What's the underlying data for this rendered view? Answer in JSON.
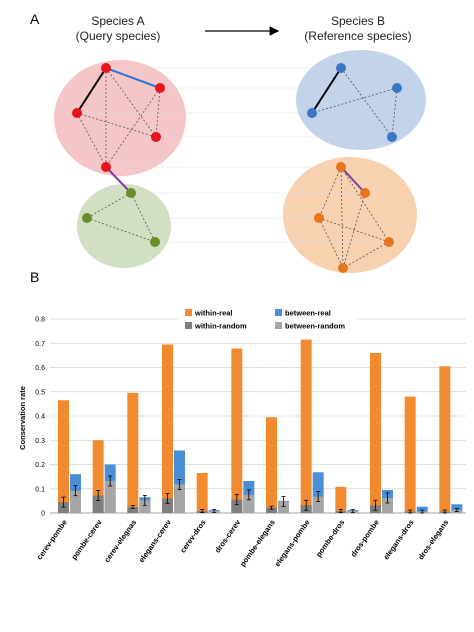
{
  "panel_a": {
    "label": "A",
    "species_a_line1": "Species A",
    "species_a_line2": "(Query species)",
    "species_b_line1": "Species B",
    "species_b_line2": "(Reference species)",
    "colors": {
      "red_cluster": "#f5c6c8",
      "green_cluster": "#d3dfc2",
      "blue_cluster": "#c3d3ea",
      "orange_cluster": "#f7d1b0",
      "red_node": "#e8131b",
      "green_node": "#6a8c2c",
      "blue_node": "#3a76c4",
      "orange_node": "#e8741c",
      "blue_edge": "#2e74c9",
      "purple_edge": "#7a3fa0"
    }
  },
  "panel_b": {
    "label": "B"
  },
  "chart_data": {
    "type": "bar",
    "ylabel": "Conservation rate",
    "ylim": [
      0,
      0.8
    ],
    "yticks": [
      "0",
      "0.1",
      "0.2",
      "0.3",
      "0.4",
      "0.5",
      "0.6",
      "0.7",
      "0.8"
    ],
    "grid": true,
    "legend_position": "top",
    "categories": [
      "cerev-pombe",
      "pombe-cerev",
      "cerev-elegnas",
      "elegans-cerev",
      "cerev-dros",
      "dros-cerev",
      "pombe-elegans",
      "elegans-pombe",
      "pombe-dros",
      "dros-pombe",
      "elegans-dros",
      "dros-elegans"
    ],
    "series": [
      {
        "name": "within-real",
        "color": "#f28a30",
        "values": [
          0.465,
          0.3,
          0.495,
          0.695,
          0.165,
          0.678,
          0.395,
          0.715,
          0.108,
          0.66,
          0.48,
          0.605
        ]
      },
      {
        "name": "within-random",
        "color": "#7f7f7f",
        "values": [
          0.045,
          0.072,
          0.025,
          0.06,
          0.008,
          0.055,
          0.022,
          0.032,
          0.008,
          0.032,
          0.006,
          0.006
        ]
      },
      {
        "name": "between-real",
        "color": "#4a8fd8",
        "values": [
          0.16,
          0.2,
          0.065,
          0.258,
          0.012,
          0.132,
          0.05,
          0.168,
          0.012,
          0.095,
          0.026,
          0.036
        ]
      },
      {
        "name": "between-random",
        "color": "#a6a6a6",
        "values": [
          0.092,
          0.132,
          0.052,
          0.118,
          0.008,
          0.075,
          0.048,
          0.068,
          0.008,
          0.062,
          0.006,
          0.012
        ]
      }
    ]
  }
}
